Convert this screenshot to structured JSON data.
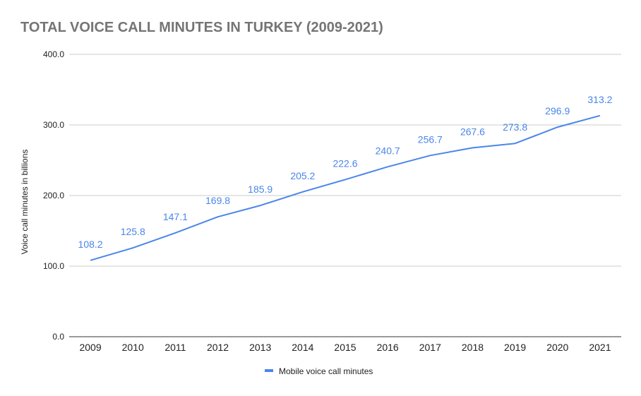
{
  "chart_data": {
    "type": "line",
    "title": "TOTAL VOICE CALL MINUTES IN TURKEY (2009-2021)",
    "ylabel": "Voice call minutes in billions",
    "xlabel": "",
    "ylim": [
      0,
      400
    ],
    "y_ticks": [
      "0.0",
      "100.0",
      "200.0",
      "300.0",
      "400.0"
    ],
    "categories": [
      "2009",
      "2010",
      "2011",
      "2012",
      "2013",
      "2014",
      "2015",
      "2016",
      "2017",
      "2018",
      "2019",
      "2020",
      "2021"
    ],
    "series": [
      {
        "name": "Mobile voice call minutes",
        "values": [
          108.2,
          125.8,
          147.1,
          169.8,
          185.9,
          205.2,
          222.6,
          240.7,
          256.7,
          267.6,
          273.8,
          296.9,
          313.2
        ],
        "labels": [
          "108.2",
          "125.8",
          "147.1",
          "169.8",
          "185.9",
          "205.2",
          "222.6",
          "240.7",
          "256.7",
          "267.6",
          "273.8",
          "296.9",
          "313.2"
        ],
        "color": "#4a86e8"
      }
    ],
    "grid": true,
    "legend_position": "bottom"
  }
}
